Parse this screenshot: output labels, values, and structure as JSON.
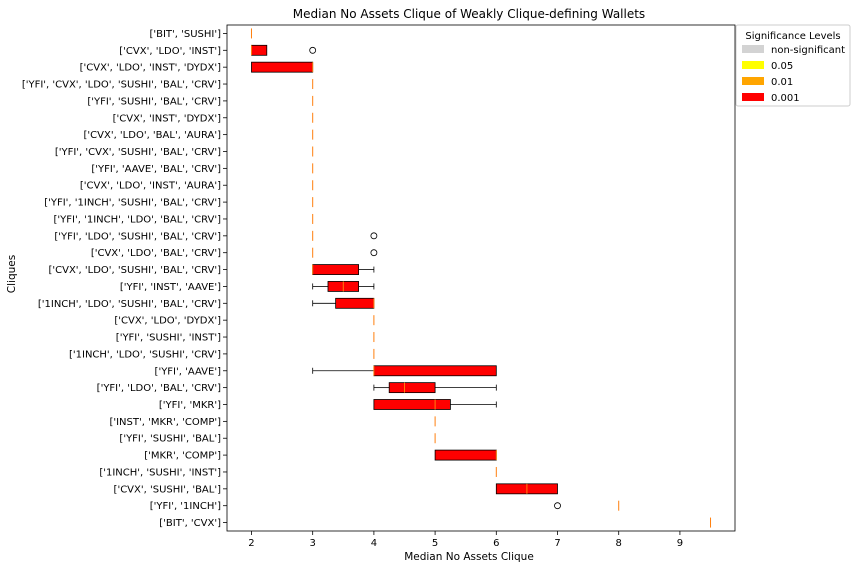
{
  "chart_data": {
    "type": "boxplot",
    "orientation": "horizontal",
    "title": "Median No Assets Clique of Weakly Clique-defining Wallets",
    "xlabel": "Median No Assets Clique",
    "ylabel": "Cliques",
    "xlim": [
      1.6,
      9.9
    ],
    "xticks": [
      2,
      3,
      4,
      5,
      6,
      7,
      8,
      9
    ],
    "grid": false,
    "legend": {
      "title": "Significance Levels",
      "position": "outside-top-right",
      "entries": [
        {
          "label": "non-significant",
          "color": "#d3d3d3"
        },
        {
          "label": "0.05",
          "color": "#ffff00"
        },
        {
          "label": "0.01",
          "color": "#ffa500"
        },
        {
          "label": "0.001",
          "color": "#ff0000"
        }
      ]
    },
    "median_color": "#ff7f0e",
    "boxes": [
      {
        "label": "['BIT', 'SUSHI']",
        "q1": 2,
        "median": 2,
        "q3": 2,
        "whisker_low": 2,
        "whisker_high": 2,
        "outliers": [],
        "significance": "0.001"
      },
      {
        "label": "['CVX', 'LDO', 'INST']",
        "q1": 2,
        "median": 2,
        "q3": 2.25,
        "whisker_low": 2,
        "whisker_high": 2.25,
        "outliers": [
          3
        ],
        "significance": "0.001"
      },
      {
        "label": "['CVX', 'LDO', 'INST', 'DYDX']",
        "q1": 2,
        "median": 3,
        "q3": 3,
        "whisker_low": 2,
        "whisker_high": 3,
        "outliers": [],
        "significance": "0.001"
      },
      {
        "label": "['YFI', 'CVX', 'LDO', 'SUSHI', 'BAL', 'CRV']",
        "q1": 3,
        "median": 3,
        "q3": 3,
        "whisker_low": 3,
        "whisker_high": 3,
        "outliers": [],
        "significance": "0.001"
      },
      {
        "label": "['YFI', 'SUSHI', 'BAL', 'CRV']",
        "q1": 3,
        "median": 3,
        "q3": 3,
        "whisker_low": 3,
        "whisker_high": 3,
        "outliers": [],
        "significance": "0.001"
      },
      {
        "label": "['CVX', 'INST', 'DYDX']",
        "q1": 3,
        "median": 3,
        "q3": 3,
        "whisker_low": 3,
        "whisker_high": 3,
        "outliers": [],
        "significance": "0.001"
      },
      {
        "label": "['CVX', 'LDO', 'BAL', 'AURA']",
        "q1": 3,
        "median": 3,
        "q3": 3,
        "whisker_low": 3,
        "whisker_high": 3,
        "outliers": [],
        "significance": "0.001"
      },
      {
        "label": "['YFI', 'CVX', 'SUSHI', 'BAL', 'CRV']",
        "q1": 3,
        "median": 3,
        "q3": 3,
        "whisker_low": 3,
        "whisker_high": 3,
        "outliers": [],
        "significance": "0.001"
      },
      {
        "label": "['YFI', 'AAVE', 'BAL', 'CRV']",
        "q1": 3,
        "median": 3,
        "q3": 3,
        "whisker_low": 3,
        "whisker_high": 3,
        "outliers": [],
        "significance": "0.001"
      },
      {
        "label": "['CVX', 'LDO', 'INST', 'AURA']",
        "q1": 3,
        "median": 3,
        "q3": 3,
        "whisker_low": 3,
        "whisker_high": 3,
        "outliers": [],
        "significance": "0.001"
      },
      {
        "label": "['YFI', '1INCH', 'SUSHI', 'BAL', 'CRV']",
        "q1": 3,
        "median": 3,
        "q3": 3,
        "whisker_low": 3,
        "whisker_high": 3,
        "outliers": [],
        "significance": "0.001"
      },
      {
        "label": "['YFI', '1INCH', 'LDO', 'BAL', 'CRV']",
        "q1": 3,
        "median": 3,
        "q3": 3,
        "whisker_low": 3,
        "whisker_high": 3,
        "outliers": [],
        "significance": "0.001"
      },
      {
        "label": "['YFI', 'LDO', 'SUSHI', 'BAL', 'CRV']",
        "q1": 3,
        "median": 3,
        "q3": 3,
        "whisker_low": 3,
        "whisker_high": 3,
        "outliers": [
          4
        ],
        "significance": "0.001"
      },
      {
        "label": "['CVX', 'LDO', 'BAL', 'CRV']",
        "q1": 3,
        "median": 3,
        "q3": 3,
        "whisker_low": 3,
        "whisker_high": 3,
        "outliers": [
          4
        ],
        "significance": "0.001"
      },
      {
        "label": "['CVX', 'LDO', 'SUSHI', 'BAL', 'CRV']",
        "q1": 3,
        "median": 3,
        "q3": 3.75,
        "whisker_low": 3,
        "whisker_high": 4,
        "outliers": [],
        "significance": "0.001"
      },
      {
        "label": "['YFI', 'INST', 'AAVE']",
        "q1": 3.25,
        "median": 3.5,
        "q3": 3.75,
        "whisker_low": 3,
        "whisker_high": 4,
        "outliers": [],
        "significance": "0.001"
      },
      {
        "label": "['1INCH', 'LDO', 'SUSHI', 'BAL', 'CRV']",
        "q1": 3.375,
        "median": 4,
        "q3": 4,
        "whisker_low": 3,
        "whisker_high": 4,
        "outliers": [],
        "significance": "0.001"
      },
      {
        "label": "['CVX', 'LDO', 'DYDX']",
        "q1": 4,
        "median": 4,
        "q3": 4,
        "whisker_low": 4,
        "whisker_high": 4,
        "outliers": [],
        "significance": "0.001"
      },
      {
        "label": "['YFI', 'SUSHI', 'INST']",
        "q1": 4,
        "median": 4,
        "q3": 4,
        "whisker_low": 4,
        "whisker_high": 4,
        "outliers": [],
        "significance": "0.001"
      },
      {
        "label": "['1INCH', 'LDO', 'SUSHI', 'CRV']",
        "q1": 4,
        "median": 4,
        "q3": 4,
        "whisker_low": 4,
        "whisker_high": 4,
        "outliers": [],
        "significance": "0.001"
      },
      {
        "label": "['YFI', 'AAVE']",
        "q1": 4,
        "median": 4,
        "q3": 6,
        "whisker_low": 3,
        "whisker_high": 6,
        "outliers": [],
        "significance": "0.001"
      },
      {
        "label": "['YFI', 'LDO', 'BAL', 'CRV']",
        "q1": 4.25,
        "median": 4.5,
        "q3": 5,
        "whisker_low": 4,
        "whisker_high": 6,
        "outliers": [],
        "significance": "0.001"
      },
      {
        "label": "['YFI', 'MKR']",
        "q1": 4,
        "median": 5,
        "q3": 5.25,
        "whisker_low": 4,
        "whisker_high": 6,
        "outliers": [],
        "significance": "0.001"
      },
      {
        "label": "['INST', 'MKR', 'COMP']",
        "q1": 5,
        "median": 5,
        "q3": 5,
        "whisker_low": 5,
        "whisker_high": 5,
        "outliers": [],
        "significance": "0.001"
      },
      {
        "label": "['YFI', 'SUSHI', 'BAL']",
        "q1": 5,
        "median": 5,
        "q3": 5,
        "whisker_low": 5,
        "whisker_high": 5,
        "outliers": [],
        "significance": "0.001"
      },
      {
        "label": "['MKR', 'COMP']",
        "q1": 5,
        "median": 6,
        "q3": 6,
        "whisker_low": 5,
        "whisker_high": 6,
        "outliers": [],
        "significance": "0.001"
      },
      {
        "label": "['1INCH', 'SUSHI', 'INST']",
        "q1": 6,
        "median": 6,
        "q3": 6,
        "whisker_low": 6,
        "whisker_high": 6,
        "outliers": [],
        "significance": "0.001"
      },
      {
        "label": "['CVX', 'SUSHI', 'BAL']",
        "q1": 6,
        "median": 6.5,
        "q3": 7,
        "whisker_low": 6,
        "whisker_high": 7,
        "outliers": [],
        "significance": "0.001"
      },
      {
        "label": "['YFI', '1INCH']",
        "q1": 8,
        "median": 8,
        "q3": 8,
        "whisker_low": 8,
        "whisker_high": 8,
        "outliers": [
          7
        ],
        "significance": "0.001"
      },
      {
        "label": "['BIT', 'CVX']",
        "q1": 9.5,
        "median": 9.5,
        "q3": 9.5,
        "whisker_low": 9.5,
        "whisker_high": 9.5,
        "outliers": [],
        "significance": "0.001"
      }
    ]
  }
}
